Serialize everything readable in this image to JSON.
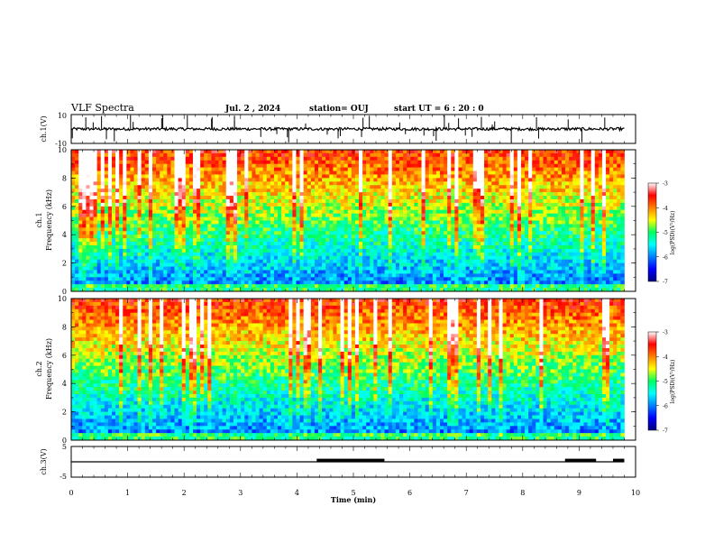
{
  "header": {
    "title": "VLF Spectra",
    "date": "Jul.  2  , 2024",
    "station": "station= OUJ",
    "start": "start  UT  =   6  : 20 : 0"
  },
  "chart_data": {
    "type": "heatmap",
    "x": {
      "label": "Time  (min)",
      "range": [
        0,
        10
      ],
      "ticks": [
        "0",
        "1",
        "2",
        "3",
        "4",
        "5",
        "6",
        "7",
        "8",
        "9",
        "10"
      ]
    },
    "panels": [
      {
        "id": "ch1-waveform",
        "type": "line",
        "ylabel": "ch.1(V)",
        "ylim": [
          -10,
          10
        ],
        "ytick_labels": [
          "10",
          "-10"
        ],
        "baseline": 0,
        "noise_amplitude": 1,
        "data_end_min": 9.8
      },
      {
        "id": "ch1-spectrogram",
        "type": "heatmap",
        "ylabel": "ch.1\nFrequency  (kHz)",
        "ylim": [
          0,
          10
        ],
        "ytick_labels": [
          "0",
          "2",
          "4",
          "6",
          "8",
          "10"
        ],
        "data_end_min": 9.8,
        "colorbar": {
          "label": "log(PSD)(V²/Hz)",
          "range": [
            -7,
            -3
          ],
          "tick_labels": [
            "-3",
            "-4",
            "-5",
            "-6",
            "-7"
          ]
        }
      },
      {
        "id": "ch2-spectrogram",
        "type": "heatmap",
        "ylabel": "ch.2\nFrequency  (kHz)",
        "ylim": [
          0,
          10
        ],
        "ytick_labels": [
          "0",
          "2",
          "4",
          "6",
          "8",
          "10"
        ],
        "data_end_min": 9.8,
        "colorbar": {
          "label": "log(PSD)(V²/Hz)",
          "range": [
            -7,
            -3
          ],
          "tick_labels": [
            "-3",
            "-4",
            "-5",
            "-6",
            "-7"
          ]
        }
      },
      {
        "id": "ch3-digital",
        "type": "line",
        "ylabel": "ch.3(V)",
        "ylim": [
          -5,
          5
        ],
        "ytick_labels": [
          "5",
          "-5"
        ],
        "baseline": 0,
        "high_level": 1,
        "high_intervals_min": [
          [
            4.35,
            5.55
          ],
          [
            8.75,
            9.3
          ],
          [
            9.6,
            9.8
          ]
        ],
        "data_end_min": 9.8
      }
    ]
  }
}
